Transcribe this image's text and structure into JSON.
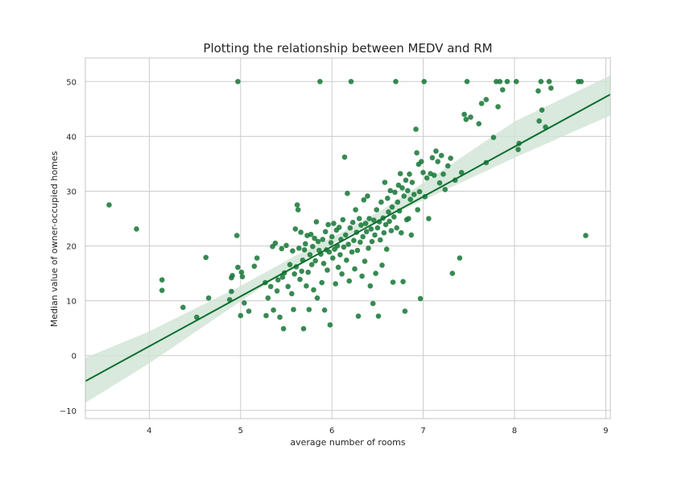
{
  "chart_data": {
    "type": "scatter",
    "title": "Plotting the relationship between MEDV and RM",
    "xlabel": "average number of rooms",
    "ylabel": "Median value of owner-occupied homes",
    "xlim": [
      3.3,
      9.05
    ],
    "ylim": [
      -11.5,
      54.3
    ],
    "xticks": [
      4,
      5,
      6,
      7,
      8,
      9
    ],
    "yticks": [
      -10,
      0,
      10,
      20,
      30,
      40,
      50
    ],
    "grid": true,
    "colors": {
      "points": "#1b7a3a",
      "line": "#0b6e2e",
      "band": "#cfe3d4",
      "grid": "#cccccc",
      "spine": "#c0c0c0"
    },
    "regression": {
      "slope": 9.1,
      "intercept": -34.7,
      "band": [
        {
          "x": 3.3,
          "lower": -8.6,
          "upper": -0.4
        },
        {
          "x": 4.0,
          "lower": -1.4,
          "upper": 4.4
        },
        {
          "x": 5.0,
          "lower": 9.9,
          "upper": 12.7
        },
        {
          "x": 5.6,
          "lower": 16.5,
          "upper": 18.2
        },
        {
          "x": 6.1,
          "lower": 21.3,
          "upper": 22.4
        },
        {
          "x": 6.6,
          "lower": 25.2,
          "upper": 27.1
        },
        {
          "x": 7.2,
          "lower": 29.9,
          "upper": 33.7
        },
        {
          "x": 8.0,
          "lower": 36.1,
          "upper": 42.7
        },
        {
          "x": 9.05,
          "lower": 43.8,
          "upper": 51.1
        }
      ]
    },
    "points": [
      [
        3.56,
        27.5
      ],
      [
        3.86,
        23.1
      ],
      [
        4.14,
        13.8
      ],
      [
        4.14,
        11.9
      ],
      [
        4.37,
        8.8
      ],
      [
        4.52,
        7.0
      ],
      [
        4.62,
        17.9
      ],
      [
        4.65,
        10.5
      ],
      [
        4.88,
        10.2
      ],
      [
        4.9,
        14.2
      ],
      [
        4.9,
        11.7
      ],
      [
        4.91,
        14.6
      ],
      [
        4.96,
        21.9
      ],
      [
        4.97,
        16.1
      ],
      [
        4.97,
        50.0
      ],
      [
        5.0,
        7.3
      ],
      [
        5.01,
        15.2
      ],
      [
        5.02,
        14.4
      ],
      [
        5.04,
        9.6
      ],
      [
        5.09,
        8.1
      ],
      [
        5.15,
        16.3
      ],
      [
        5.18,
        17.8
      ],
      [
        5.27,
        13.3
      ],
      [
        5.28,
        7.3
      ],
      [
        5.3,
        10.5
      ],
      [
        5.33,
        12.6
      ],
      [
        5.35,
        19.9
      ],
      [
        5.36,
        8.3
      ],
      [
        5.38,
        20.5
      ],
      [
        5.4,
        11.8
      ],
      [
        5.41,
        13.8
      ],
      [
        5.43,
        7.0
      ],
      [
        5.45,
        19.5
      ],
      [
        5.46,
        14.3
      ],
      [
        5.47,
        4.9
      ],
      [
        5.48,
        15.1
      ],
      [
        5.5,
        20.1
      ],
      [
        5.52,
        12.6
      ],
      [
        5.54,
        16.6
      ],
      [
        5.56,
        11.3
      ],
      [
        5.57,
        19.1
      ],
      [
        5.58,
        8.4
      ],
      [
        5.59,
        14.9
      ],
      [
        5.6,
        23.1
      ],
      [
        5.61,
        16.2
      ],
      [
        5.62,
        27.5
      ],
      [
        5.63,
        26.6
      ],
      [
        5.64,
        19.6
      ],
      [
        5.65,
        13.9
      ],
      [
        5.66,
        22.5
      ],
      [
        5.67,
        15.4
      ],
      [
        5.68,
        17.4
      ],
      [
        5.69,
        4.9
      ],
      [
        5.7,
        19.3
      ],
      [
        5.71,
        20.4
      ],
      [
        5.72,
        12.7
      ],
      [
        5.73,
        21.9
      ],
      [
        5.74,
        15.2
      ],
      [
        5.75,
        8.4
      ],
      [
        5.76,
        18.4
      ],
      [
        5.77,
        22.1
      ],
      [
        5.78,
        16.6
      ],
      [
        5.79,
        19.9
      ],
      [
        5.8,
        12.0
      ],
      [
        5.81,
        21.4
      ],
      [
        5.82,
        17.3
      ],
      [
        5.83,
        24.4
      ],
      [
        5.84,
        10.5
      ],
      [
        5.85,
        20.8
      ],
      [
        5.86,
        19.2
      ],
      [
        5.87,
        50.0
      ],
      [
        5.88,
        18.5
      ],
      [
        5.89,
        13.3
      ],
      [
        5.9,
        21.2
      ],
      [
        5.91,
        16.8
      ],
      [
        5.92,
        8.3
      ],
      [
        5.93,
        22.6
      ],
      [
        5.94,
        19.3
      ],
      [
        5.95,
        15.6
      ],
      [
        5.96,
        23.9
      ],
      [
        5.97,
        18.9
      ],
      [
        5.98,
        5.6
      ],
      [
        5.99,
        20.6
      ],
      [
        6.0,
        21.7
      ],
      [
        6.01,
        17.8
      ],
      [
        6.02,
        24.1
      ],
      [
        6.03,
        19.4
      ],
      [
        6.04,
        13.1
      ],
      [
        6.05,
        22.9
      ],
      [
        6.06,
        20.0
      ],
      [
        6.07,
        16.1
      ],
      [
        6.08,
        23.4
      ],
      [
        6.09,
        18.4
      ],
      [
        6.1,
        21.2
      ],
      [
        6.11,
        14.9
      ],
      [
        6.12,
        24.8
      ],
      [
        6.13,
        19.8
      ],
      [
        6.14,
        36.2
      ],
      [
        6.15,
        22.0
      ],
      [
        6.16,
        17.4
      ],
      [
        6.17,
        29.6
      ],
      [
        6.18,
        20.3
      ],
      [
        6.19,
        13.6
      ],
      [
        6.2,
        23.3
      ],
      [
        6.21,
        50.0
      ],
      [
        6.22,
        18.9
      ],
      [
        6.23,
        24.3
      ],
      [
        6.24,
        21.0
      ],
      [
        6.25,
        15.8
      ],
      [
        6.26,
        26.6
      ],
      [
        6.27,
        22.5
      ],
      [
        6.28,
        19.2
      ],
      [
        6.29,
        7.2
      ],
      [
        6.3,
        25.0
      ],
      [
        6.31,
        20.7
      ],
      [
        6.32,
        23.8
      ],
      [
        6.33,
        14.5
      ],
      [
        6.34,
        21.7
      ],
      [
        6.35,
        28.4
      ],
      [
        6.36,
        17.2
      ],
      [
        6.37,
        24.1
      ],
      [
        6.38,
        22.6
      ],
      [
        6.39,
        29.1
      ],
      [
        6.4,
        19.6
      ],
      [
        6.41,
        25.0
      ],
      [
        6.42,
        12.7
      ],
      [
        6.43,
        23.1
      ],
      [
        6.44,
        20.8
      ],
      [
        6.45,
        9.5
      ],
      [
        6.46,
        24.7
      ],
      [
        6.47,
        22.0
      ],
      [
        6.48,
        15.0
      ],
      [
        6.49,
        26.6
      ],
      [
        6.5,
        23.3
      ],
      [
        6.51,
        7.2
      ],
      [
        6.52,
        24.4
      ],
      [
        6.53,
        21.1
      ],
      [
        6.54,
        28.0
      ],
      [
        6.55,
        16.5
      ],
      [
        6.56,
        25.1
      ],
      [
        6.57,
        22.4
      ],
      [
        6.58,
        31.6
      ],
      [
        6.59,
        23.9
      ],
      [
        6.6,
        19.4
      ],
      [
        6.61,
        28.7
      ],
      [
        6.62,
        26.2
      ],
      [
        6.63,
        24.5
      ],
      [
        6.64,
        30.1
      ],
      [
        6.65,
        22.8
      ],
      [
        6.66,
        27.1
      ],
      [
        6.67,
        13.4
      ],
      [
        6.68,
        25.3
      ],
      [
        6.69,
        29.8
      ],
      [
        6.7,
        50.0
      ],
      [
        6.71,
        23.3
      ],
      [
        6.72,
        28.0
      ],
      [
        6.73,
        31.1
      ],
      [
        6.74,
        26.4
      ],
      [
        6.75,
        33.2
      ],
      [
        6.76,
        22.4
      ],
      [
        6.77,
        30.6
      ],
      [
        6.78,
        13.5
      ],
      [
        6.79,
        29.1
      ],
      [
        6.8,
        8.1
      ],
      [
        6.81,
        32.0
      ],
      [
        6.82,
        24.8
      ],
      [
        6.83,
        30.1
      ],
      [
        6.84,
        25.0
      ],
      [
        6.85,
        33.1
      ],
      [
        6.86,
        28.5
      ],
      [
        6.87,
        22.0
      ],
      [
        6.88,
        31.6
      ],
      [
        6.9,
        29.4
      ],
      [
        6.92,
        41.3
      ],
      [
        6.93,
        37.0
      ],
      [
        6.94,
        26.6
      ],
      [
        6.95,
        34.9
      ],
      [
        6.96,
        29.9
      ],
      [
        6.97,
        10.4
      ],
      [
        6.98,
        35.4
      ],
      [
        7.0,
        33.4
      ],
      [
        7.01,
        50.0
      ],
      [
        7.02,
        29.0
      ],
      [
        7.04,
        32.4
      ],
      [
        7.06,
        25.0
      ],
      [
        7.08,
        33.2
      ],
      [
        7.1,
        36.1
      ],
      [
        7.12,
        32.9
      ],
      [
        7.14,
        37.3
      ],
      [
        7.16,
        35.4
      ],
      [
        7.18,
        31.5
      ],
      [
        7.2,
        36.5
      ],
      [
        7.22,
        33.1
      ],
      [
        7.24,
        30.3
      ],
      [
        7.27,
        34.6
      ],
      [
        7.3,
        36.0
      ],
      [
        7.32,
        15.0
      ],
      [
        7.35,
        32.0
      ],
      [
        7.4,
        17.8
      ],
      [
        7.42,
        33.4
      ],
      [
        7.45,
        44.0
      ],
      [
        7.47,
        43.1
      ],
      [
        7.48,
        50.0
      ],
      [
        7.52,
        43.5
      ],
      [
        7.61,
        42.3
      ],
      [
        7.64,
        46.0
      ],
      [
        7.69,
        46.7
      ],
      [
        7.69,
        35.2
      ],
      [
        7.77,
        39.8
      ],
      [
        7.8,
        50.0
      ],
      [
        7.82,
        45.4
      ],
      [
        7.84,
        50.0
      ],
      [
        7.87,
        48.5
      ],
      [
        7.92,
        50.0
      ],
      [
        8.02,
        50.0
      ],
      [
        8.04,
        37.6
      ],
      [
        8.05,
        38.7
      ],
      [
        8.26,
        48.3
      ],
      [
        8.27,
        42.8
      ],
      [
        8.29,
        50.0
      ],
      [
        8.3,
        44.8
      ],
      [
        8.34,
        41.7
      ],
      [
        8.38,
        50.0
      ],
      [
        8.4,
        48.8
      ],
      [
        8.7,
        50.0
      ],
      [
        8.73,
        50.0
      ],
      [
        8.78,
        21.9
      ]
    ]
  }
}
